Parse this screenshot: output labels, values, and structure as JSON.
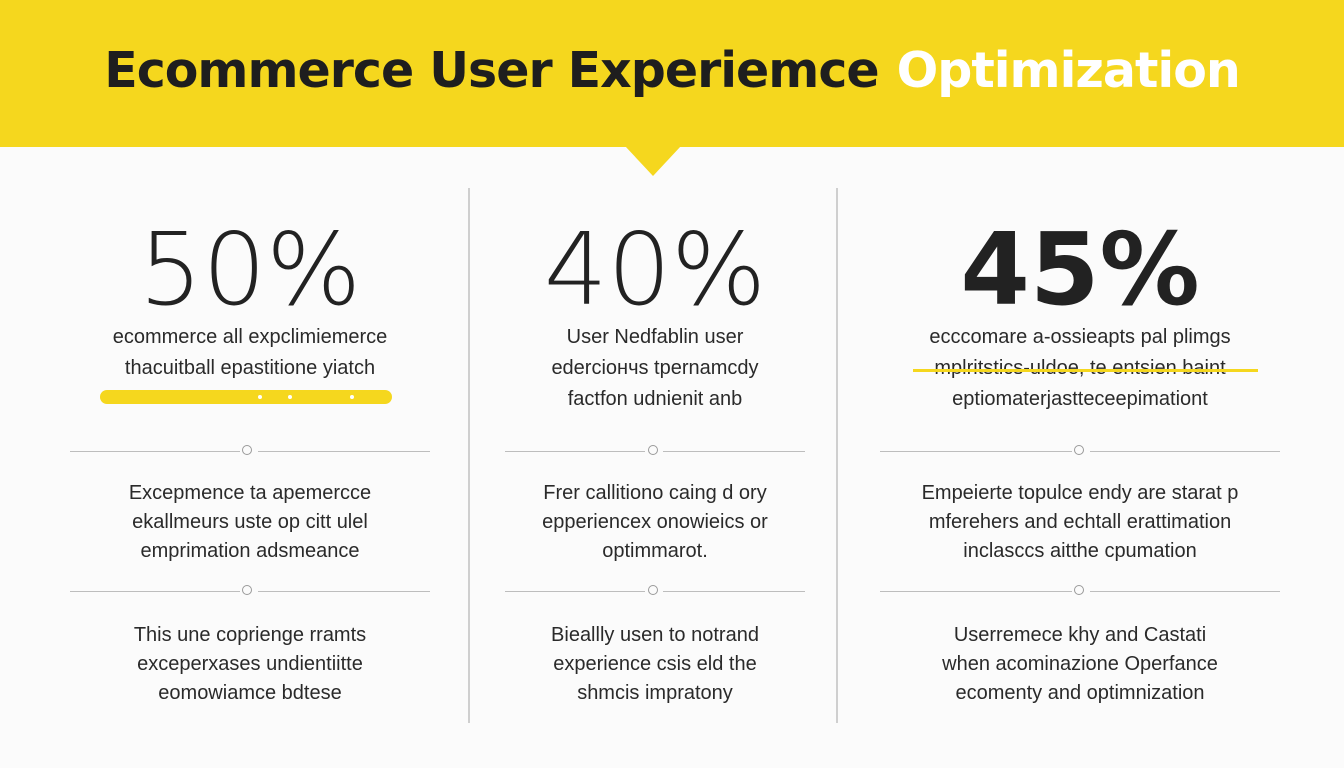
{
  "header": {
    "title_main": "Ecommerce User Experiemce",
    "title_accent": "Optimization",
    "accent_color": "#f5d71e"
  },
  "columns": [
    {
      "stat": "50%",
      "desc": [
        "ecommerce all expclimiemerce",
        "thacuitball epastitione yiatch"
      ],
      "block1": [
        "Excepmence ta apemercce",
        "ekallmeurs uste op citt ulel",
        "emprimation adsmeance"
      ],
      "block2": [
        "This une coprienge rramts",
        "exceperxases undientiitte",
        "eomowiamce bdtese"
      ]
    },
    {
      "stat": "40%",
      "desc": [
        "User Nedfablin user",
        "ederciончs tpernamcdy",
        "factfon udnienit anb"
      ],
      "block1": [
        "Frer callitiono caing d ory",
        "epperiencex onowieics or",
        "optimmarot."
      ],
      "block2": [
        "Bieallly usen to notrand",
        "experience csis eld the",
        "shmcis impratony"
      ]
    },
    {
      "stat": "45%",
      "desc": [
        "ecccomare a-ossieapts pal plimgs",
        "mplritstics-uldoe, te entsien baint",
        "eptiomaterjastteceepimationt"
      ],
      "block1": [
        "Empeierte topulce endy are starat p",
        "mferehers and echtall erattimation",
        "inclasccs aitthe cpumation"
      ],
      "block2": [
        "Userremece khy and Castati",
        "when acominazione Operfance",
        "ecomenty and optimnization"
      ]
    }
  ]
}
